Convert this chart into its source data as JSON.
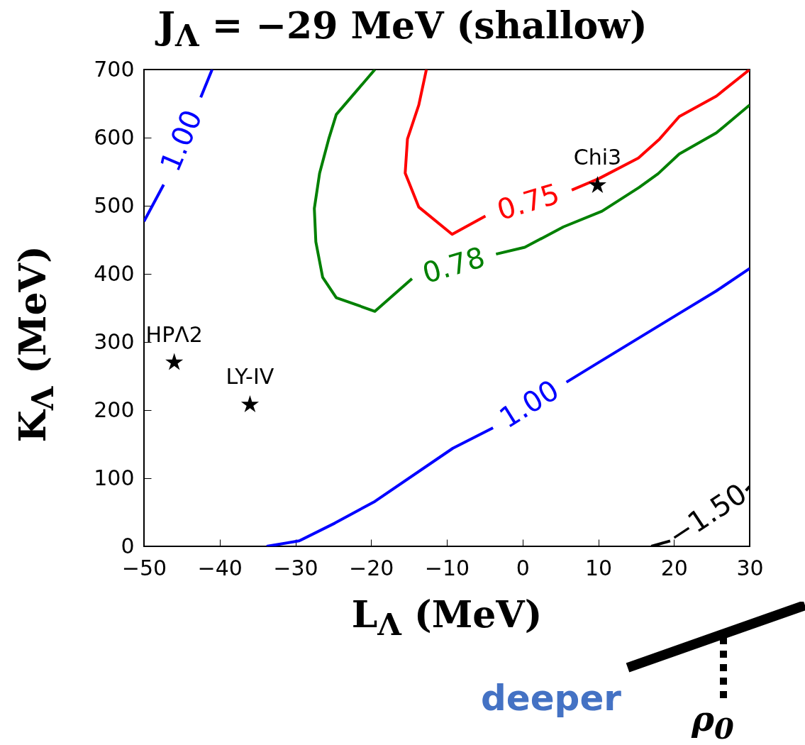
{
  "chart_data": {
    "type": "line",
    "title": "J$_{Λ}$ = −29 MeV (shallow)",
    "xlabel": "L$_{Λ}$ (MeV)",
    "ylabel": "K$_{Λ}$ (MeV)",
    "xlim": [
      -50,
      30
    ],
    "ylim": [
      0,
      700
    ],
    "xticks": [
      -50,
      -40,
      -30,
      -20,
      -10,
      0,
      10,
      20,
      30
    ],
    "yticks": [
      0,
      100,
      200,
      300,
      400,
      500,
      600,
      700
    ],
    "grid": false,
    "series": [
      {
        "name": "1.00",
        "color": "#0000ff",
        "x": [
          -50,
          -47.4,
          null,
          -42.5,
          -41
        ],
        "values": [
          477,
          531,
          null,
          659,
          700
        ]
      },
      {
        "name": "1.00",
        "color": "#0000ff",
        "x": [
          -33.8,
          -29.5,
          -24.8,
          -19.5,
          -9.2,
          -3.9,
          null,
          5.8,
          10.2,
          20.4,
          25.6,
          30
        ],
        "values": [
          0,
          8,
          34,
          66,
          144,
          174,
          null,
          241,
          271,
          340,
          375,
          408
        ]
      },
      {
        "name": "0.78",
        "color": "#008000",
        "x": [
          -19.5,
          -24.6,
          -25.6,
          -26.8,
          -27.5,
          -27.3,
          -26.4,
          -24.6,
          -19.5,
          -14.6,
          null,
          -3.5,
          0.3,
          5.4,
          10.5,
          15.4,
          17.9,
          20.7,
          25.6,
          30
        ],
        "values": [
          700,
          634,
          598,
          548,
          496,
          447,
          395,
          365,
          345,
          393,
          null,
          429,
          439,
          469,
          492,
          527,
          547,
          576,
          607,
          648
        ]
      },
      {
        "name": "0.75",
        "color": "#ff0000",
        "x": [
          -12.7,
          -13.7,
          -15.2,
          -15.5,
          -13.7,
          -9.3,
          -4.9,
          null,
          6.5,
          10.1,
          15.3,
          18.1,
          20.7,
          25.6,
          30
        ],
        "values": [
          700,
          648,
          598,
          548,
          498,
          458,
          485,
          null,
          523,
          540,
          570,
          598,
          631,
          661,
          700
        ]
      },
      {
        "name": "−1.50",
        "color": "#000000",
        "x": [
          17,
          19.5,
          null,
          29.5,
          30
        ],
        "values": [
          0,
          8,
          null,
          82,
          88
        ]
      },
      {
        "type": "scatter",
        "marker": "star",
        "color": "#000000",
        "x": [
          -46,
          -36,
          9.9
        ],
        "values": [
          270,
          208,
          530
        ]
      }
    ],
    "annotations": [
      {
        "text": "HPΛ2",
        "x": -46,
        "y": 270
      },
      {
        "text": "LY-IV",
        "x": -36,
        "y": 208
      },
      {
        "text": "Chi3",
        "x": 9.9,
        "y": 530
      },
      "deeper",
      "ρ$_{0}$"
    ]
  }
}
